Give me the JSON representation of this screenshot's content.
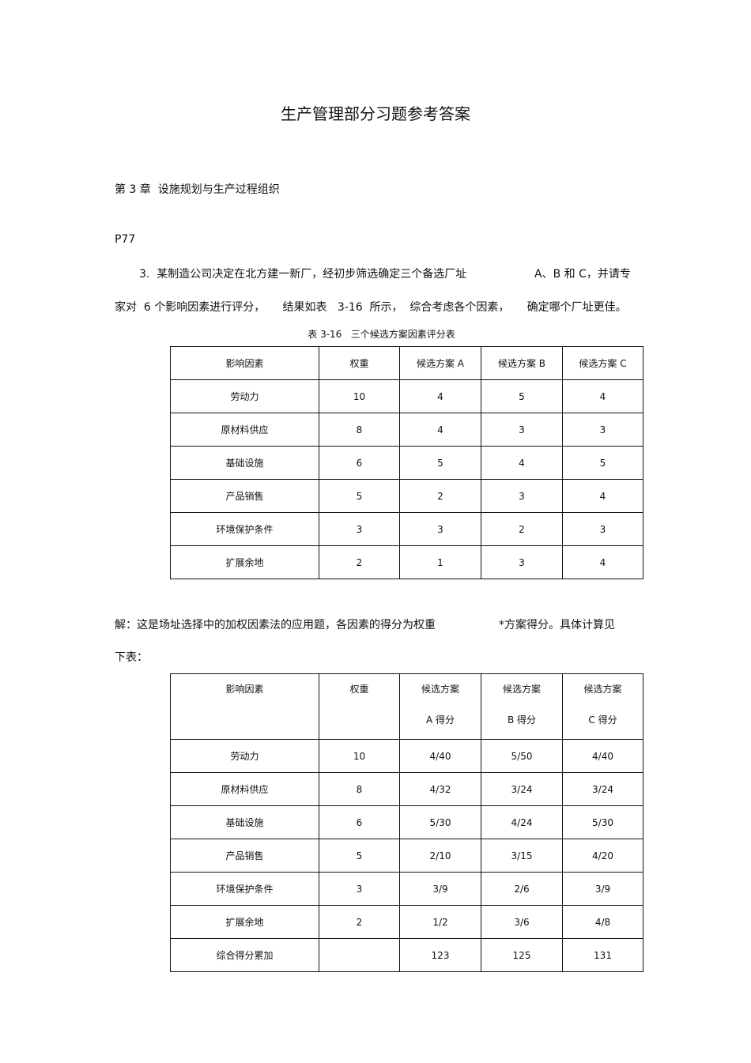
{
  "title": "生产管理部分习题参考答案",
  "chapter": "第 3 章  设施规划与生产过程组织",
  "page_ref": "P77",
  "question": {
    "line1": "3.  某制造公司决定在北方建一新厂，经初步筛选确定三个备选厂址",
    "line1_tail": "A、B 和 C，并请专",
    "line2": "家对  6 个影响因素进行评分，     结果如表   3-16  所示，  综合考虑各个因素，     确定哪个厂址更佳。"
  },
  "table1": {
    "caption": "表 3-16   三个候选方案因素评分表",
    "headers": [
      "影响因素",
      "权重",
      "候选方案  A",
      "候选方案  B",
      "候选方案  C"
    ],
    "rows": [
      [
        "劳动力",
        "10",
        "4",
        "5",
        "4"
      ],
      [
        "原材料供应",
        "8",
        "4",
        "3",
        "3"
      ],
      [
        "基础设施",
        "6",
        "5",
        "4",
        "5"
      ],
      [
        "产品销售",
        "5",
        "2",
        "3",
        "4"
      ],
      [
        "环境保护条件",
        "3",
        "3",
        "2",
        "3"
      ],
      [
        "扩展余地",
        "2",
        "1",
        "3",
        "4"
      ]
    ]
  },
  "solution": {
    "line1": "解：这是场址选择中的加权因素法的应用题，各因素的得分为权重",
    "line1_tail": "*方案得分。具体计算见",
    "line2": "下表："
  },
  "table2": {
    "headers": [
      {
        "l1": "影响因素",
        "l2": ""
      },
      {
        "l1": "权重",
        "l2": ""
      },
      {
        "l1": "候选方案",
        "l2": "A 得分"
      },
      {
        "l1": "候选方案",
        "l2": "B 得分"
      },
      {
        "l1": "候选方案",
        "l2": "C 得分"
      }
    ],
    "rows": [
      [
        "劳动力",
        "10",
        "4/40",
        "5/50",
        "4/40"
      ],
      [
        "原材料供应",
        "8",
        "4/32",
        "3/24",
        "3/24"
      ],
      [
        "基础设施",
        "6",
        "5/30",
        "4/24",
        "5/30"
      ],
      [
        "产品销售",
        "5",
        "2/10",
        "3/15",
        "4/20"
      ],
      [
        "环境保护条件",
        "3",
        "3/9",
        "2/6",
        "3/9"
      ],
      [
        "扩展余地",
        "2",
        "1/2",
        "3/6",
        "4/8"
      ],
      [
        "综合得分累加",
        "",
        "123",
        "125",
        "131"
      ]
    ]
  }
}
